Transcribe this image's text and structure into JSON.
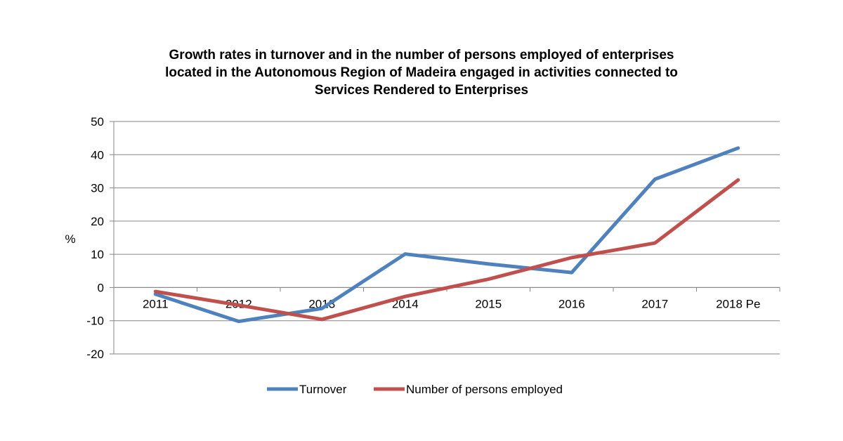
{
  "chart_data": {
    "type": "line",
    "title_lines": [
      "Growth rates in turnover and in the number of persons employed of enterprises",
      "located in the Autonomous Region of Madeira engaged in activities connected to",
      "Services Rendered to Enterprises"
    ],
    "ylabel": "%",
    "xlabel": "",
    "categories": [
      "2011",
      "2012",
      "2013",
      "2014",
      "2015",
      "2016",
      "2017",
      "2018 Pe"
    ],
    "ylim": [
      -20,
      50
    ],
    "yticks": [
      50,
      40,
      30,
      20,
      10,
      0,
      -10,
      -20
    ],
    "grid": true,
    "legend_position": "bottom",
    "series": [
      {
        "name": "Turnover",
        "color": "#4F81BD",
        "values": [
          -2.0,
          -10.2,
          -6.3,
          10.1,
          7.1,
          4.5,
          32.6,
          42.0
        ]
      },
      {
        "name": "Number of persons employed",
        "color": "#C0504D",
        "values": [
          -1.2,
          -5.3,
          -9.6,
          -2.7,
          2.5,
          9.0,
          13.4,
          32.4
        ]
      }
    ]
  }
}
